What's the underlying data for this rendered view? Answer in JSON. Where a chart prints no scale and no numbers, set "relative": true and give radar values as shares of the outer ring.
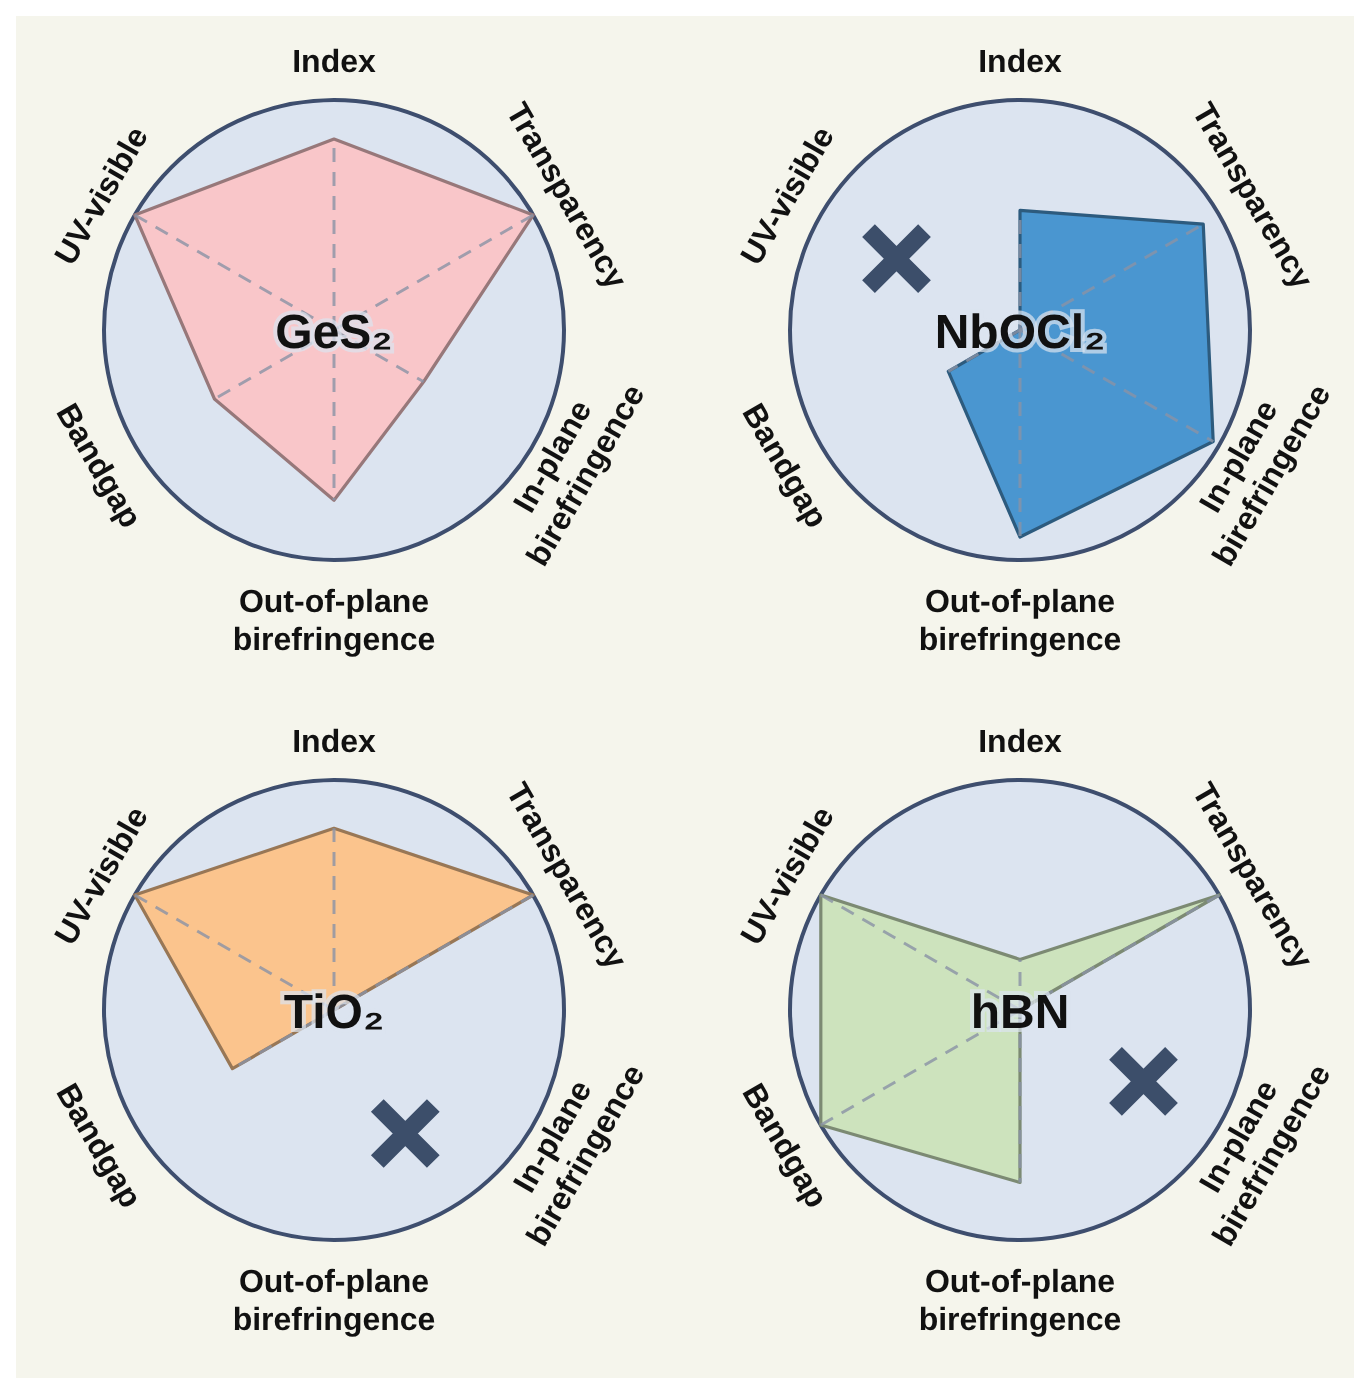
{
  "chart_data": [
    {
      "type": "radar",
      "title": "GeS₂",
      "relative": true,
      "categories": [
        "Index",
        "Transparency",
        "In-plane birefringence",
        "Out-of-plane birefringence",
        "Bandgap",
        "UV-visible"
      ],
      "series": [
        {
          "color": "#f9c6c9",
          "values": [
            0.83,
            1,
            0.45,
            0.74,
            0.6,
            1
          ]
        }
      ]
    },
    {
      "type": "radar",
      "title": "NbOCl₂",
      "relative": true,
      "categories": [
        "Index",
        "Transparency",
        "In-plane birefringence",
        "Out-of-plane birefringence",
        "Bandgap",
        "UV-visible"
      ],
      "series": [
        {
          "color": "#4a96d0",
          "values": [
            0.52,
            0.92,
            0.97,
            0.9,
            0.36,
            0
          ]
        }
      ]
    },
    {
      "type": "radar",
      "title": "TiO₂",
      "relative": true,
      "categories": [
        "Index",
        "Transparency",
        "In-plane birefringence",
        "Out-of-plane birefringence",
        "Bandgap",
        "UV-visible"
      ],
      "series": [
        {
          "color": "#fbc48d",
          "values": [
            0.79,
            1,
            0,
            0,
            0.51,
            1
          ]
        }
      ]
    },
    {
      "type": "radar",
      "title": "hBN",
      "relative": true,
      "categories": [
        "Index",
        "Transparency",
        "In-plane birefringence",
        "Out-of-plane birefringence",
        "Bandgap",
        "UV-visible"
      ],
      "series": [
        {
          "color": "#cde3bd",
          "values": [
            0.22,
            1,
            0,
            0.75,
            1,
            1
          ]
        }
      ]
    }
  ]
}
